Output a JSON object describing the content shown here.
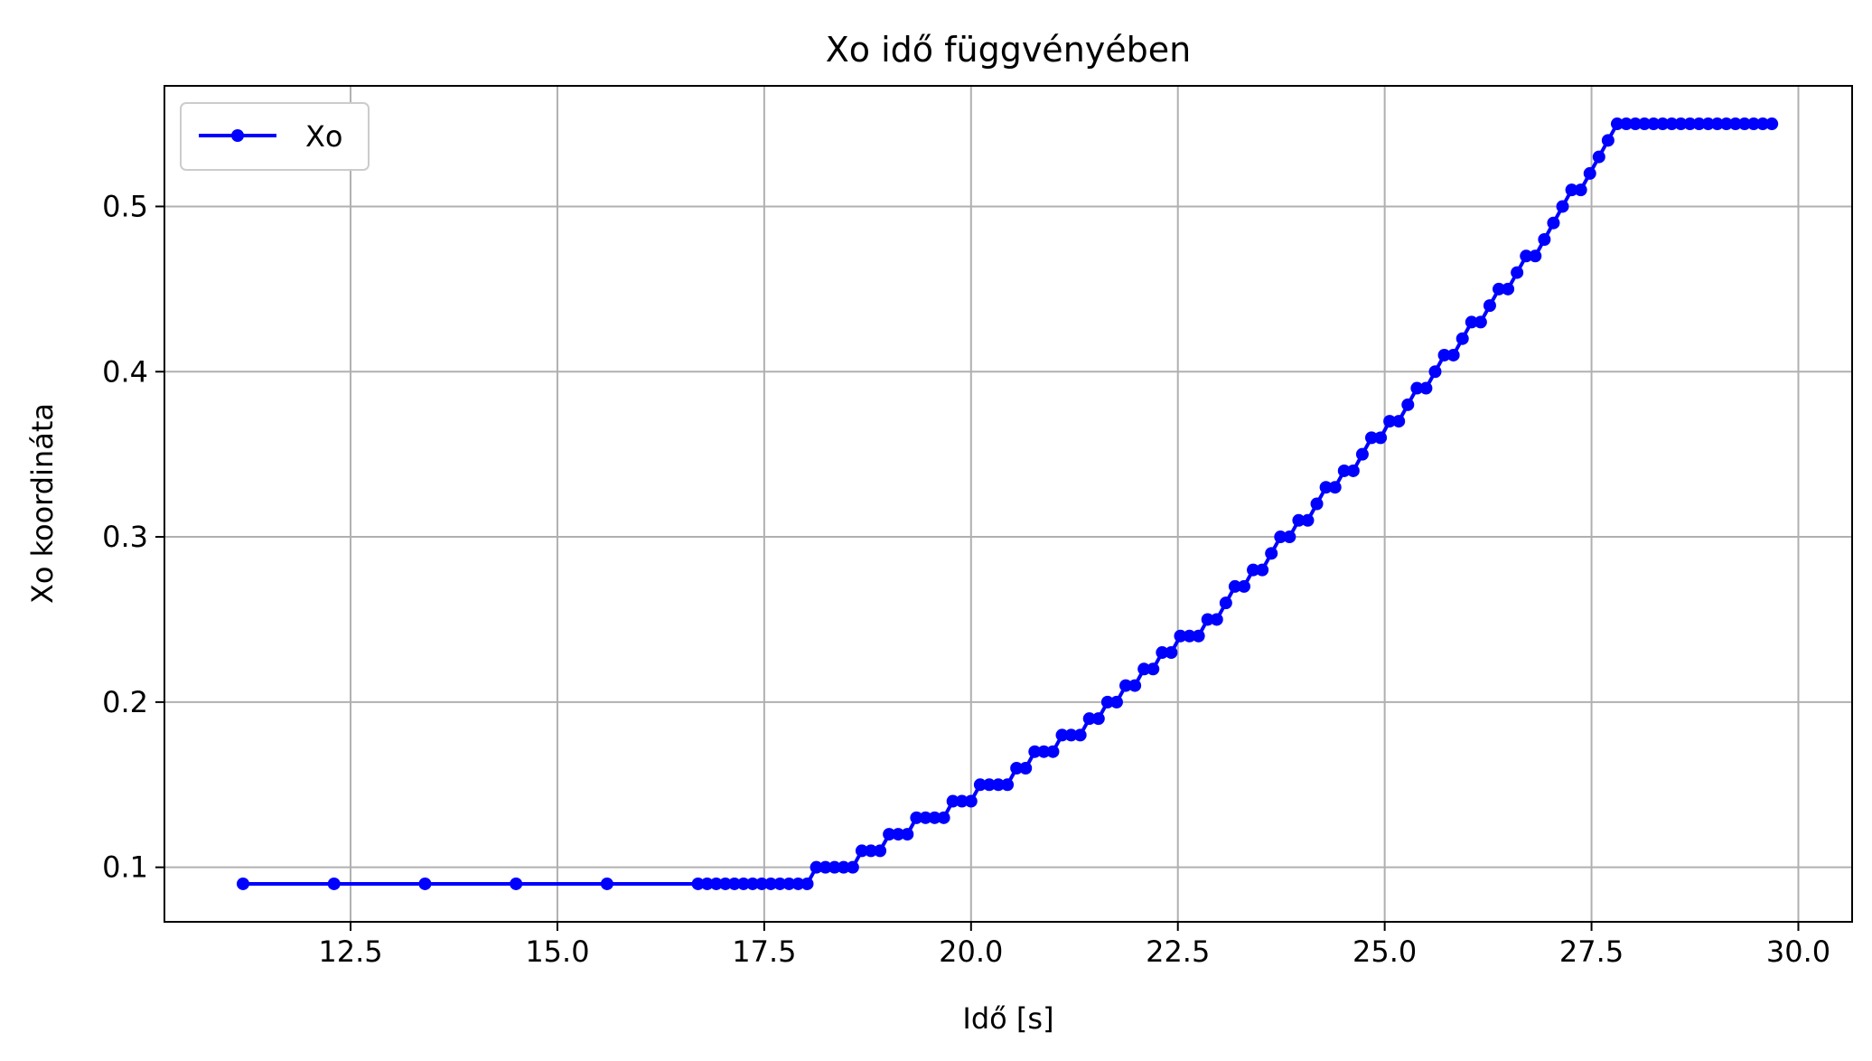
{
  "chart_data": {
    "type": "line",
    "title": "Xo idő függvényében",
    "xlabel": "Idő [s]",
    "ylabel": "Xo koordináta",
    "xlim": [
      10.25,
      30.65
    ],
    "ylim": [
      0.067,
      0.573
    ],
    "xticks": [
      12.5,
      15.0,
      17.5,
      20.0,
      22.5,
      25.0,
      27.5,
      30.0
    ],
    "xtick_labels": [
      "12.5",
      "15.0",
      "17.5",
      "20.0",
      "22.5",
      "25.0",
      "27.5",
      "30.0"
    ],
    "yticks": [
      0.1,
      0.2,
      0.3,
      0.4,
      0.5
    ],
    "ytick_labels": [
      "0.1",
      "0.2",
      "0.3",
      "0.4",
      "0.5"
    ],
    "grid": true,
    "legend": {
      "position": "top-left",
      "entries": [
        "Xo"
      ]
    },
    "series": [
      {
        "name": "Xo",
        "color": "#0000ff",
        "marker": "circle",
        "x": [
          11.2,
          12.3,
          13.4,
          14.5,
          15.6,
          16.7,
          16.81,
          16.92,
          17.03,
          17.14,
          17.25,
          17.36,
          17.47,
          17.58,
          17.69,
          17.8,
          17.91,
          18.02,
          18.13,
          18.24,
          18.35,
          18.46,
          18.57,
          18.68,
          18.79,
          18.9,
          19.01,
          19.12,
          19.23,
          19.34,
          19.45,
          19.56,
          19.67,
          19.78,
          19.89,
          20.0,
          20.11,
          20.22,
          20.33,
          20.44,
          20.55,
          20.66,
          20.77,
          20.88,
          20.99,
          21.1,
          21.21,
          21.32,
          21.43,
          21.54,
          21.65,
          21.76,
          21.87,
          21.98,
          22.09,
          22.2,
          22.31,
          22.42,
          22.53,
          22.64,
          22.75,
          22.86,
          22.97,
          23.08,
          23.19,
          23.3,
          23.41,
          23.52,
          23.63,
          23.74,
          23.85,
          23.96,
          24.07,
          24.18,
          24.29,
          24.4,
          24.51,
          24.62,
          24.73,
          24.84,
          24.95,
          25.06,
          25.17,
          25.28,
          25.39,
          25.5,
          25.61,
          25.72,
          25.83,
          25.94,
          26.05,
          26.16,
          26.27,
          26.38,
          26.49,
          26.6,
          26.71,
          26.82,
          26.93,
          27.04,
          27.15,
          27.26,
          27.37,
          27.48,
          27.59,
          27.7,
          27.81,
          27.92,
          28.03,
          28.14,
          28.25,
          28.36,
          28.47,
          28.58,
          28.69,
          28.8,
          28.91,
          29.02,
          29.13,
          29.24,
          29.35,
          29.46,
          29.57,
          29.68
        ],
        "y": [
          0.09,
          0.09,
          0.09,
          0.09,
          0.09,
          0.09,
          0.09,
          0.09,
          0.09,
          0.09,
          0.09,
          0.09,
          0.09,
          0.09,
          0.09,
          0.09,
          0.09,
          0.09,
          0.1,
          0.1,
          0.1,
          0.1,
          0.1,
          0.11,
          0.11,
          0.11,
          0.12,
          0.12,
          0.12,
          0.13,
          0.13,
          0.13,
          0.13,
          0.14,
          0.14,
          0.14,
          0.15,
          0.15,
          0.15,
          0.15,
          0.16,
          0.16,
          0.17,
          0.17,
          0.17,
          0.18,
          0.18,
          0.18,
          0.19,
          0.19,
          0.2,
          0.2,
          0.21,
          0.21,
          0.22,
          0.22,
          0.23,
          0.23,
          0.24,
          0.24,
          0.24,
          0.25,
          0.25,
          0.26,
          0.27,
          0.27,
          0.28,
          0.28,
          0.29,
          0.3,
          0.3,
          0.31,
          0.31,
          0.32,
          0.33,
          0.33,
          0.34,
          0.34,
          0.35,
          0.36,
          0.36,
          0.37,
          0.37,
          0.38,
          0.39,
          0.39,
          0.4,
          0.41,
          0.41,
          0.42,
          0.43,
          0.43,
          0.44,
          0.45,
          0.45,
          0.46,
          0.47,
          0.47,
          0.48,
          0.49,
          0.5,
          0.51,
          0.51,
          0.52,
          0.53,
          0.54,
          0.55,
          0.55,
          0.55,
          0.55,
          0.55,
          0.55,
          0.55,
          0.55,
          0.55,
          0.55,
          0.55,
          0.55,
          0.55,
          0.55,
          0.55,
          0.55,
          0.55,
          0.55
        ]
      }
    ]
  }
}
